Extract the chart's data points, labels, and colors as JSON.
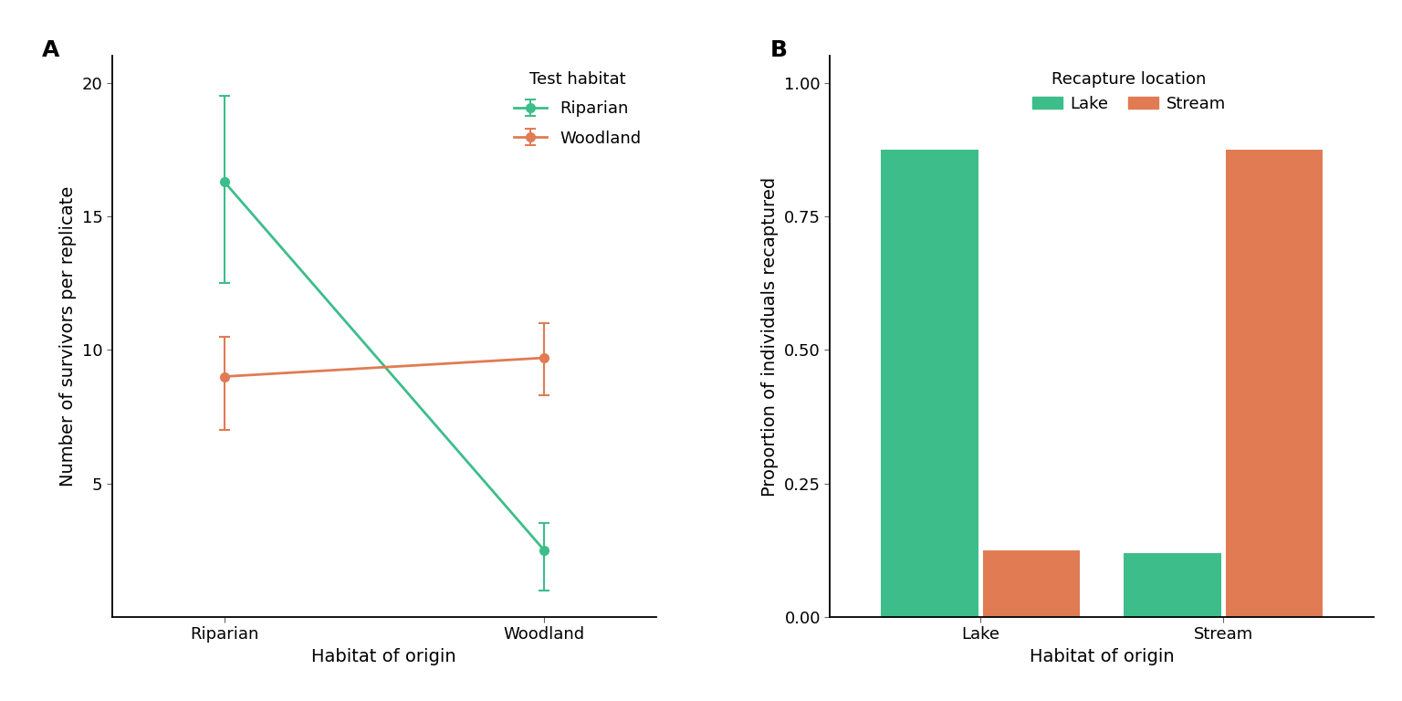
{
  "panel_A": {
    "title_label": "A",
    "xlabel": "Habitat of origin",
    "ylabel": "Number of survivors per replicate",
    "legend_title": "Test habitat",
    "x_labels": [
      "Riparian",
      "Woodland"
    ],
    "riparian_line": {
      "label": "Riparian",
      "color": "#3DBD8A",
      "y": [
        16.3,
        2.5
      ],
      "yerr_low": [
        3.8,
        1.5
      ],
      "yerr_high": [
        3.2,
        1.0
      ]
    },
    "woodland_line": {
      "label": "Woodland",
      "color": "#E07B54",
      "y": [
        9.0,
        9.7
      ],
      "yerr_low": [
        2.0,
        1.4
      ],
      "yerr_high": [
        1.5,
        1.3
      ]
    },
    "ylim": [
      0,
      21
    ],
    "yticks": [
      5,
      10,
      15,
      20
    ]
  },
  "panel_B": {
    "title_label": "B",
    "xlabel": "Habitat of origin",
    "ylabel": "Proportion of individuals recaptured",
    "legend_title": "Recapture location",
    "x_labels": [
      "Lake",
      "Stream"
    ],
    "lake_bars": {
      "label": "Lake",
      "color": "#3DBD8A",
      "values": [
        0.875,
        0.12
      ]
    },
    "stream_bars": {
      "label": "Stream",
      "color": "#E07B54",
      "values": [
        0.125,
        0.875
      ]
    },
    "ylim": [
      0,
      1.05
    ],
    "yticks": [
      0.0,
      0.25,
      0.5,
      0.75,
      1.0
    ]
  },
  "background_color": "#ffffff",
  "font_size": 13,
  "title_font_size": 18,
  "spine_color": "#333333"
}
